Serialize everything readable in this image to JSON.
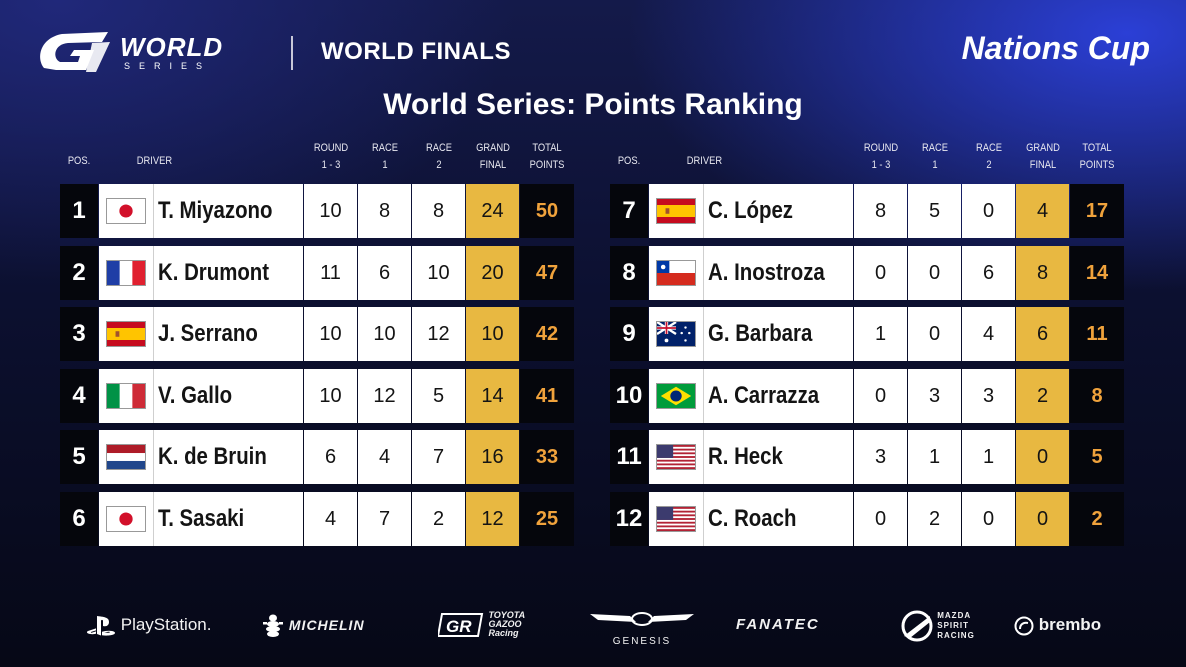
{
  "header": {
    "logo_world": "WORLD",
    "logo_series": "SERIES",
    "event_title": "WORLD FINALS",
    "series_name": "Nations Cup"
  },
  "page_title": "World Series: Points Ranking",
  "columns": {
    "pos": "POS.",
    "driver": "DRIVER",
    "round_l1": "ROUND",
    "round_l2": "1 - 3",
    "race1_l1": "RACE",
    "race1_l2": "1",
    "race2_l1": "RACE",
    "race2_l2": "2",
    "grand_l1": "GRAND",
    "grand_l2": "FINAL",
    "total_l1": "TOTAL",
    "total_l2": "POINTS"
  },
  "colors": {
    "grand_final_bg": "#e8b841",
    "total_points_text": "#f0a23c",
    "pos_bg": "#05060c"
  },
  "standings": [
    {
      "pos": "1",
      "flag": "japan",
      "driver": "T. Miyazono",
      "round13": "10",
      "race1": "8",
      "race2": "8",
      "grand_final": "24",
      "total": "50"
    },
    {
      "pos": "2",
      "flag": "france",
      "driver": "K. Drumont",
      "round13": "11",
      "race1": "6",
      "race2": "10",
      "grand_final": "20",
      "total": "47"
    },
    {
      "pos": "3",
      "flag": "spain",
      "driver": "J. Serrano",
      "round13": "10",
      "race1": "10",
      "race2": "12",
      "grand_final": "10",
      "total": "42"
    },
    {
      "pos": "4",
      "flag": "italy",
      "driver": "V. Gallo",
      "round13": "10",
      "race1": "12",
      "race2": "5",
      "grand_final": "14",
      "total": "41"
    },
    {
      "pos": "5",
      "flag": "netherlands",
      "driver": "K. de Bruin",
      "round13": "6",
      "race1": "4",
      "race2": "7",
      "grand_final": "16",
      "total": "33"
    },
    {
      "pos": "6",
      "flag": "japan",
      "driver": "T. Sasaki",
      "round13": "4",
      "race1": "7",
      "race2": "2",
      "grand_final": "12",
      "total": "25"
    },
    {
      "pos": "7",
      "flag": "spain",
      "driver": "C. López",
      "round13": "8",
      "race1": "5",
      "race2": "0",
      "grand_final": "4",
      "total": "17"
    },
    {
      "pos": "8",
      "flag": "chile",
      "driver": "A. Inostroza",
      "round13": "0",
      "race1": "0",
      "race2": "6",
      "grand_final": "8",
      "total": "14"
    },
    {
      "pos": "9",
      "flag": "australia",
      "driver": "G. Barbara",
      "round13": "1",
      "race1": "0",
      "race2": "4",
      "grand_final": "6",
      "total": "11"
    },
    {
      "pos": "10",
      "flag": "brazil",
      "driver": "A. Carrazza",
      "round13": "0",
      "race1": "3",
      "race2": "3",
      "grand_final": "2",
      "total": "8"
    },
    {
      "pos": "11",
      "flag": "usa",
      "driver": "R. Heck",
      "round13": "3",
      "race1": "1",
      "race2": "1",
      "grand_final": "0",
      "total": "5"
    },
    {
      "pos": "12",
      "flag": "usa",
      "driver": "C. Roach",
      "round13": "0",
      "race1": "2",
      "race2": "0",
      "grand_final": "0",
      "total": "2"
    }
  ],
  "sponsors": {
    "playstation": "PlayStation.",
    "michelin": "MICHELIN",
    "toyota_l1": "TOYOTA",
    "toyota_l2": "GAZOO",
    "toyota_l3": "Racing",
    "genesis": "GENESIS",
    "fanatec": "FANATEC",
    "mazda_l1": "MAZDA",
    "mazda_l2": "SPIRIT",
    "mazda_l3": "RACING",
    "brembo": "brembo"
  }
}
